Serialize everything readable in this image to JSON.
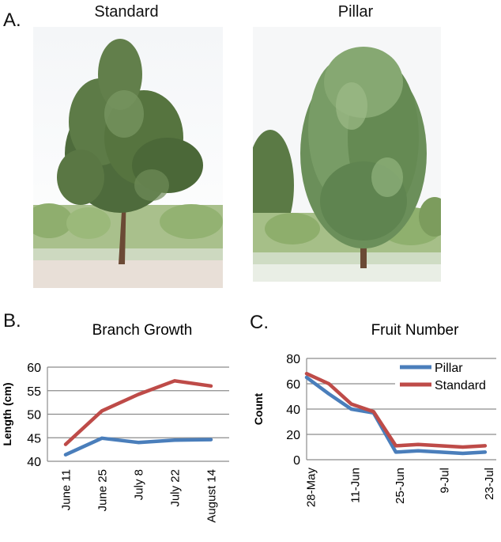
{
  "panels": {
    "a_label": "A.",
    "b_label": "B.",
    "c_label": "C."
  },
  "photos": {
    "standard_title": "Standard",
    "pillar_title": "Pillar"
  },
  "colors": {
    "pillar": "#4a7ebb",
    "standard": "#be4b48",
    "grid": "#8c8c8c"
  },
  "chart_data": [
    {
      "type": "line",
      "title": "Branch Growth",
      "xlabel": "",
      "ylabel": "Length (cm)",
      "ylim": [
        40,
        60
      ],
      "yticks": [
        40,
        45,
        50,
        55,
        60
      ],
      "categories": [
        "June 11",
        "June 25",
        "July 8",
        "July 22",
        "August 14"
      ],
      "grid": true,
      "legend": "none",
      "series": [
        {
          "name": "",
          "color": "#be4b48",
          "values": [
            43.6,
            50.7,
            54.2,
            57.1,
            56.0
          ]
        },
        {
          "name": "",
          "color": "#4a7ebb",
          "values": [
            41.4,
            44.9,
            44.0,
            44.5,
            44.6
          ]
        }
      ]
    },
    {
      "type": "line",
      "title": "Fruit Number",
      "xlabel": "",
      "ylabel": "Count",
      "ylim": [
        0,
        80
      ],
      "yticks": [
        0,
        20,
        40,
        60,
        80
      ],
      "x_tick_labels": [
        "28-May",
        "11-Jun",
        "25-Jun",
        "9-Jul",
        "23-Jul"
      ],
      "grid": true,
      "legend": "top-right",
      "series": [
        {
          "name": "Pillar",
          "color": "#4a7ebb",
          "values": [
            65,
            52,
            40,
            37,
            6,
            7,
            6,
            5,
            6
          ]
        },
        {
          "name": "Standard",
          "color": "#be4b48",
          "values": [
            68,
            60,
            44,
            38,
            11,
            12,
            11,
            10,
            11
          ]
        }
      ]
    }
  ]
}
